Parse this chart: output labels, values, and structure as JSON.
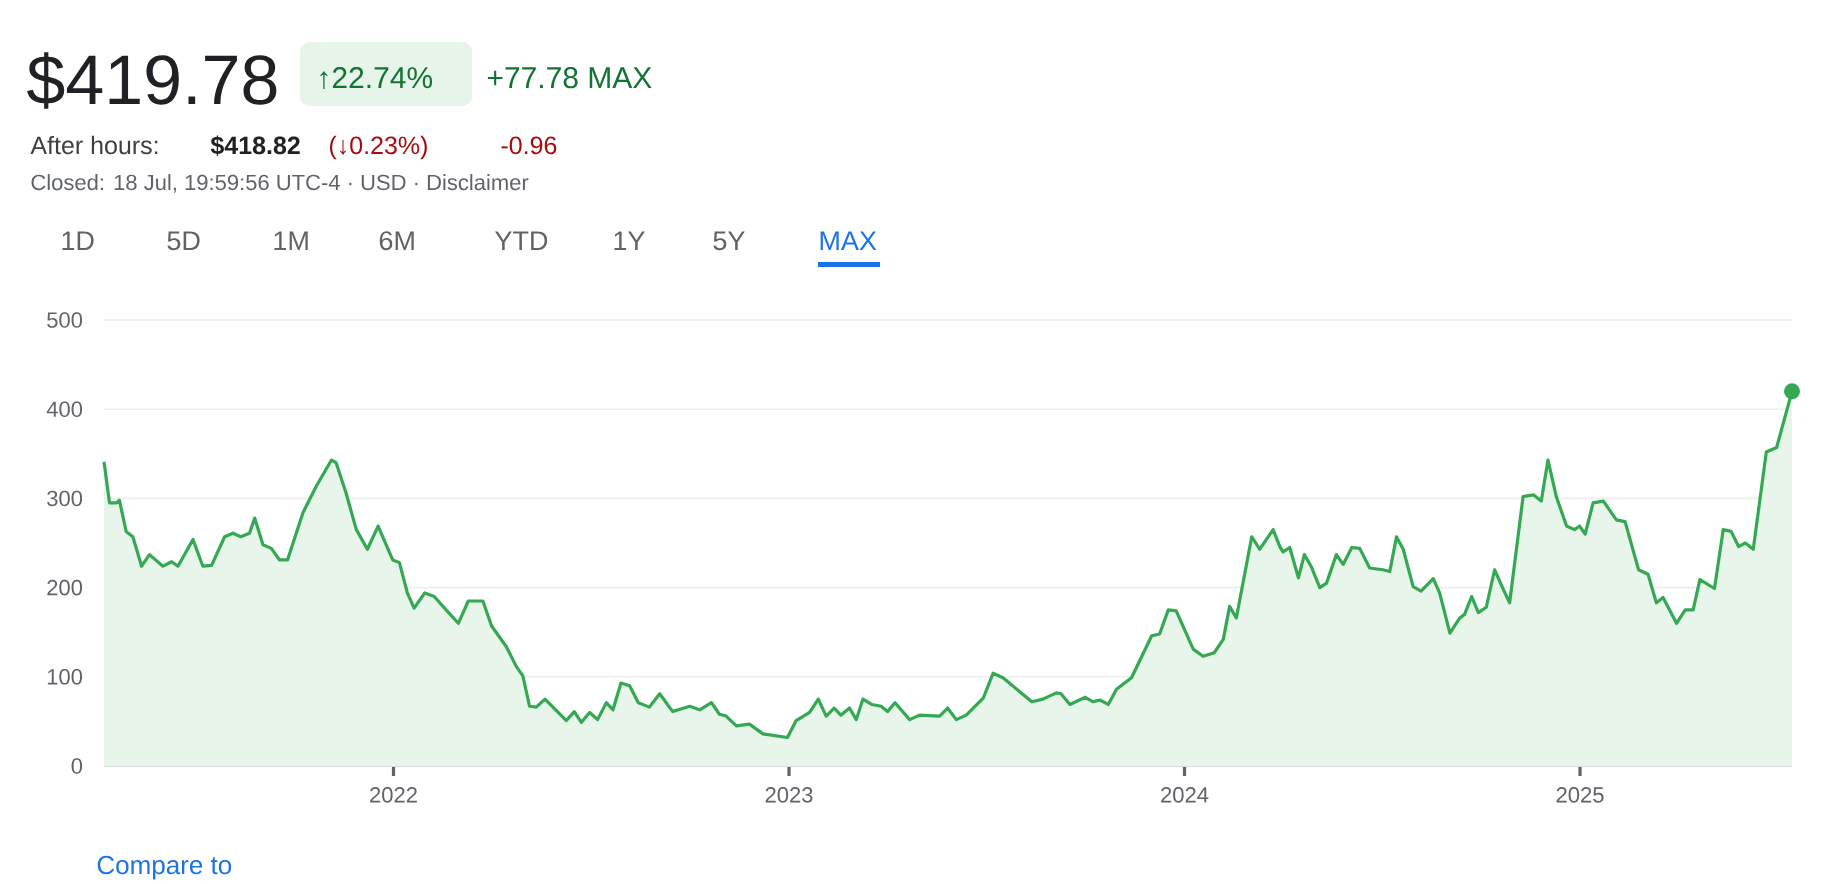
{
  "chart_data": {
    "type": "area",
    "title": "$419.78",
    "annotations": [
      "↑22.74%",
      "+77.78 MAX",
      "After hours:",
      "$418.82",
      "(↓0.23%)",
      "-0.96",
      "Closed: 18 Jul, 19:59:56 UTC-4 · USD · Disclaimer",
      "1D",
      "5D",
      "1M",
      "6M",
      "YTD",
      "1Y",
      "5Y",
      "MAX",
      "Compare to"
    ],
    "x": [
      2021.268,
      2021.282,
      2021.299,
      2021.307,
      2021.324,
      2021.341,
      2021.363,
      2021.383,
      2021.417,
      2021.439,
      2021.455,
      2021.493,
      2021.518,
      2021.54,
      2021.573,
      2021.594,
      2021.614,
      2021.636,
      2021.649,
      2021.67,
      2021.691,
      2021.712,
      2021.732,
      2021.771,
      2021.804,
      2021.843,
      2021.855,
      2021.88,
      2021.906,
      2021.934,
      2021.961,
      2021.998,
      2022.015,
      2022.035,
      2022.052,
      2022.079,
      2022.103,
      2022.133,
      2022.164,
      2022.189,
      2022.226,
      2022.248,
      2022.285,
      2022.31,
      2022.327,
      2022.344,
      2022.361,
      2022.383,
      2022.437,
      2022.457,
      2022.475,
      2022.496,
      2022.516,
      2022.538,
      2022.555,
      2022.575,
      2022.597,
      2022.619,
      2022.647,
      2022.673,
      2022.706,
      2022.749,
      2022.774,
      2022.804,
      2022.824,
      2022.841,
      2022.867,
      2022.9,
      2022.934,
      2022.996,
      2023.018,
      2023.052,
      2023.074,
      2023.094,
      2023.114,
      2023.131,
      2023.153,
      2023.17,
      2023.187,
      2023.209,
      2023.233,
      2023.249,
      2023.268,
      2023.305,
      2023.33,
      2023.381,
      2023.401,
      2023.423,
      2023.448,
      2023.491,
      2023.516,
      2023.541,
      2023.614,
      2023.642,
      2023.676,
      2023.688,
      2023.71,
      2023.749,
      2023.769,
      2023.786,
      2023.807,
      2023.828,
      2023.866,
      2023.917,
      2023.937,
      2023.959,
      2023.979,
      2024.022,
      2024.047,
      2024.075,
      2024.098,
      2024.114,
      2024.131,
      2024.17,
      2024.19,
      2024.224,
      2024.241,
      2024.249,
      2024.266,
      2024.288,
      2024.303,
      2024.32,
      2024.342,
      2024.359,
      2024.384,
      2024.401,
      2024.423,
      2024.443,
      2024.468,
      2024.502,
      2024.519,
      2024.536,
      2024.553,
      2024.578,
      2024.598,
      2024.629,
      2024.645,
      2024.671,
      2024.696,
      2024.708,
      2024.726,
      2024.743,
      2024.763,
      2024.784,
      2024.806,
      2024.822,
      2024.856,
      2024.882,
      2024.902,
      2024.919,
      2024.94,
      2024.966,
      2024.986,
      2024.999,
      2025.013,
      2025.033,
      2025.059,
      2025.092,
      2025.114,
      2025.148,
      2025.172,
      2025.193,
      2025.21,
      2025.244,
      2025.266,
      2025.286,
      2025.303,
      2025.34,
      2025.362,
      2025.382,
      2025.401,
      2025.418,
      2025.438,
      2025.471,
      2025.497,
      2025.536
    ],
    "values": [
      341,
      295,
      295,
      298,
      263,
      257,
      224,
      237,
      224,
      229,
      224,
      254,
      224,
      225,
      257,
      261,
      257,
      261,
      278,
      248,
      244,
      231,
      231,
      284,
      313,
      343,
      340,
      306,
      265,
      243,
      269,
      231,
      228,
      194,
      177,
      194,
      190,
      175,
      160,
      185,
      185,
      157,
      134,
      112,
      101,
      67,
      66,
      75,
      51,
      61,
      49,
      60,
      52,
      71,
      63,
      93,
      90,
      71,
      66,
      81,
      61,
      67,
      63,
      71,
      58,
      56,
      45,
      47,
      36,
      32,
      51,
      60,
      75,
      56,
      65,
      57,
      65,
      52,
      75,
      69,
      67,
      61,
      71,
      52,
      57,
      56,
      65,
      52,
      57,
      76,
      104,
      99,
      72,
      75,
      82,
      81,
      69,
      77,
      72,
      74,
      69,
      86,
      99,
      146,
      148,
      175,
      174,
      131,
      123,
      127,
      142,
      179,
      166,
      257,
      243,
      265,
      246,
      240,
      245,
      211,
      237,
      224,
      200,
      205,
      237,
      226,
      245,
      244,
      222,
      220,
      218,
      257,
      243,
      201,
      196,
      210,
      194,
      149,
      166,
      170,
      190,
      172,
      178,
      220,
      198,
      183,
      302,
      304,
      297,
      343,
      302,
      269,
      265,
      269,
      260,
      295,
      297,
      276,
      274,
      220,
      215,
      183,
      189,
      160,
      175,
      175,
      209,
      199,
      265,
      263,
      246,
      250,
      243,
      352,
      357,
      420
    ],
    "color": "#34a853",
    "xlim": [
      2021.268,
      2025.536
    ],
    "ylim": [
      0,
      500
    ],
    "xticks": [
      2022,
      2023,
      2024,
      2025
    ],
    "yticks": [
      0,
      100,
      200,
      300,
      400,
      500
    ],
    "grid": "y"
  }
}
